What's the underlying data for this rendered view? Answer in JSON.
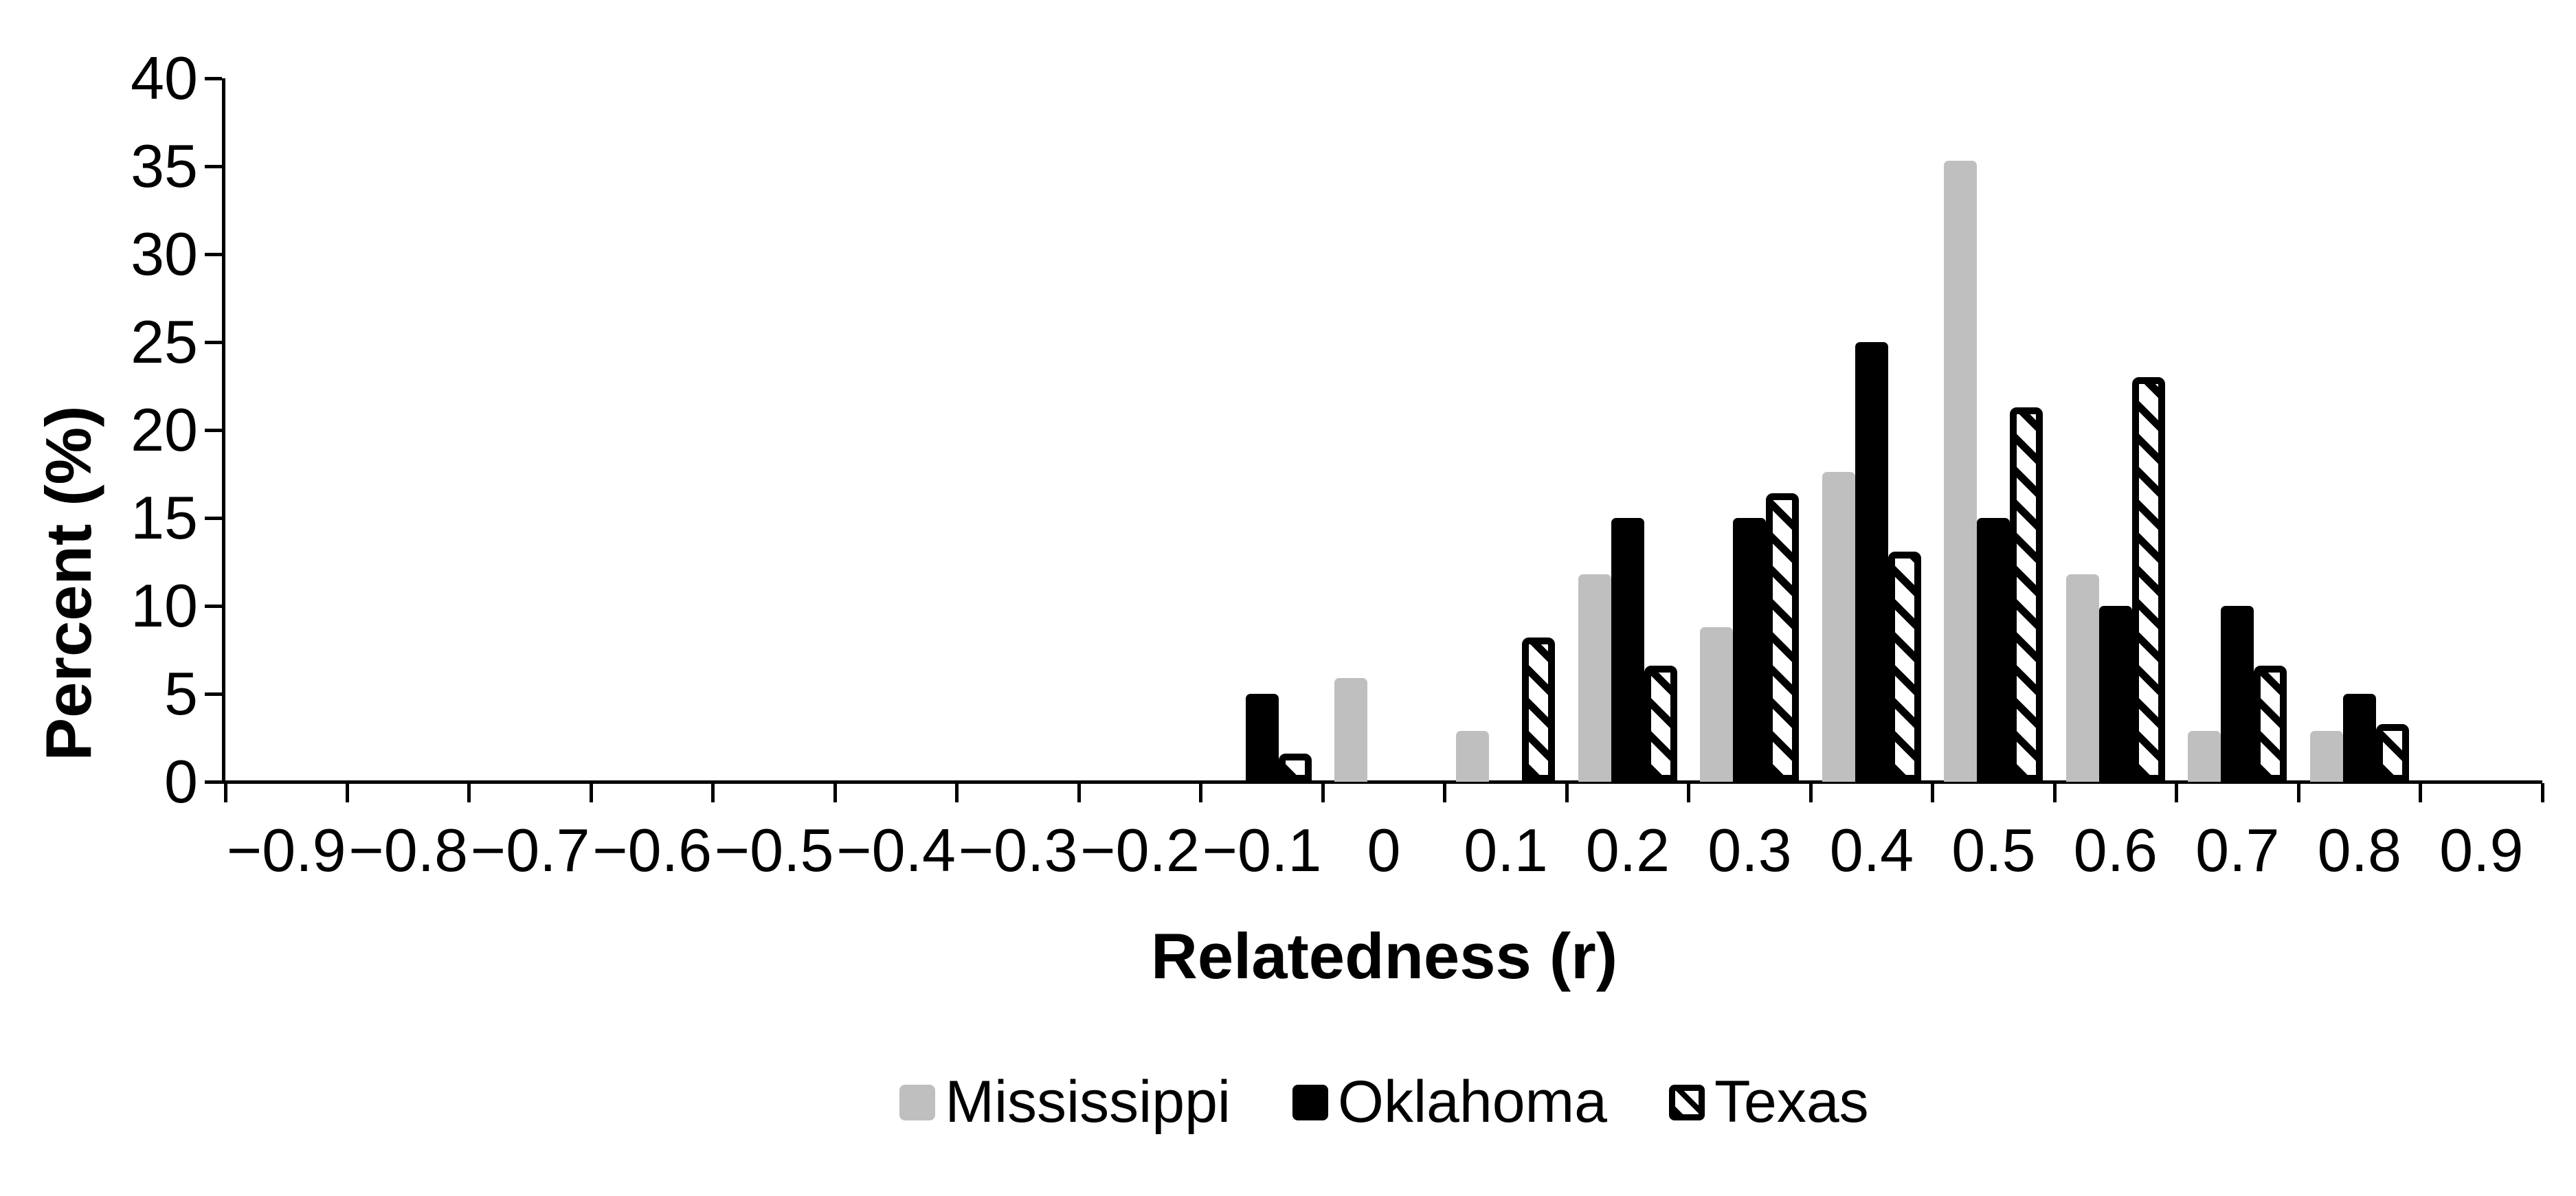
{
  "chart_data": {
    "type": "bar",
    "title": "",
    "xlabel": "Relatedness (r)",
    "ylabel": "Percent (%)",
    "ylim": [
      0,
      40
    ],
    "yticks": [
      0,
      5,
      10,
      15,
      20,
      25,
      30,
      35,
      40
    ],
    "grid": false,
    "legend_position": "bottom",
    "categories": [
      "−0.9",
      "−0.8",
      "−0.7",
      "−0.6",
      "−0.5",
      "−0.4",
      "−0.3",
      "−0.2",
      "−0.1",
      "0",
      "0.1",
      "0.2",
      "0.3",
      "0.4",
      "0.5",
      "0.6",
      "0.7",
      "0.8",
      "0.9"
    ],
    "series": [
      {
        "name": "Mississippi",
        "color": "#bfbfbf",
        "pattern": "solid",
        "values": [
          0,
          0,
          0,
          0,
          0,
          0,
          0,
          0,
          0,
          5.9,
          2.9,
          11.8,
          8.8,
          17.6,
          35.3,
          11.8,
          2.9,
          2.9,
          0
        ]
      },
      {
        "name": "Oklahoma",
        "color": "#000000",
        "pattern": "solid",
        "values": [
          0,
          0,
          0,
          0,
          0,
          0,
          0,
          0,
          5,
          0,
          0,
          15,
          15,
          25,
          15,
          10,
          10,
          5,
          0
        ]
      },
      {
        "name": "Texas",
        "color": "#000000",
        "fill": "#ffffff",
        "pattern": "diagonal-hatch",
        "values": [
          0,
          0,
          0,
          0,
          0,
          0,
          0,
          0,
          1.6,
          0,
          8.2,
          6.6,
          16.4,
          13.1,
          21.3,
          23,
          6.6,
          3.3,
          0
        ]
      }
    ]
  }
}
